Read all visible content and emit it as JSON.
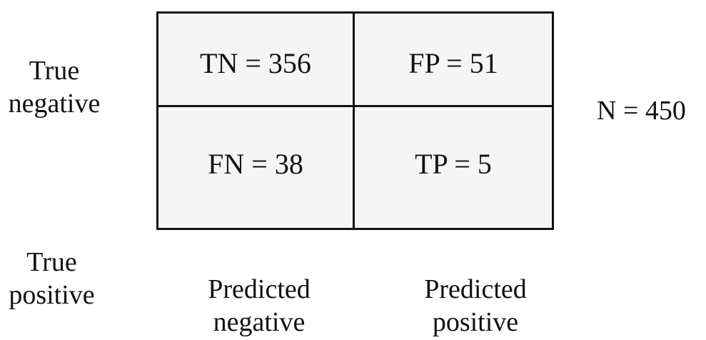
{
  "row_labels": {
    "top": [
      "True",
      "negative"
    ],
    "bottom": [
      "True",
      "positive"
    ]
  },
  "column_labels": {
    "left": [
      "Predicted",
      "negative"
    ],
    "right": [
      "Predicted",
      "positive"
    ]
  },
  "matrix": {
    "tn": "TN = 356",
    "fp": "FP = 51",
    "fn": "FN = 38",
    "tp": "TP = 5"
  },
  "total": "N = 450"
}
